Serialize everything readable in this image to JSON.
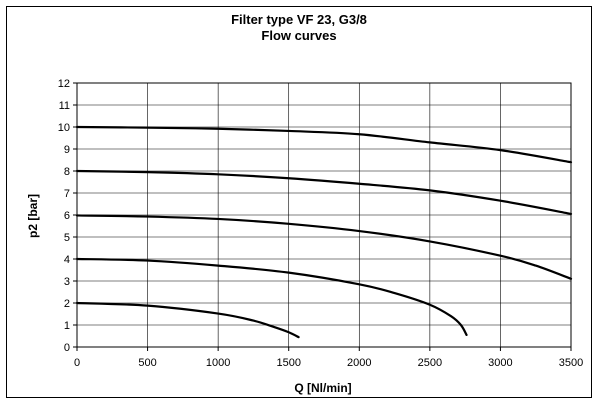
{
  "chart_data": {
    "type": "line",
    "title": "Filter type VF 23, G3/8",
    "subtitle": "Flow curves",
    "xlabel": "Q [Nl/min]",
    "ylabel": "p2 [bar]",
    "xlim": [
      0,
      3500
    ],
    "ylim": [
      0,
      12
    ],
    "x_ticks": [
      "0",
      "500",
      "1000",
      "1500",
      "2000",
      "2500",
      "3000",
      "3500"
    ],
    "y_ticks": [
      "0",
      "1",
      "2",
      "3",
      "4",
      "5",
      "6",
      "7",
      "8",
      "9",
      "10",
      "11",
      "12"
    ],
    "grid": true,
    "legend": "none",
    "series": [
      {
        "values": [
          [
            0,
            10
          ],
          [
            500,
            9.97
          ],
          [
            1000,
            9.92
          ],
          [
            1500,
            9.82
          ],
          [
            2000,
            9.67
          ],
          [
            2500,
            9.3
          ],
          [
            3000,
            8.95
          ],
          [
            3500,
            8.4
          ]
        ]
      },
      {
        "values": [
          [
            0,
            8
          ],
          [
            500,
            7.95
          ],
          [
            1000,
            7.85
          ],
          [
            1500,
            7.67
          ],
          [
            2000,
            7.42
          ],
          [
            2500,
            7.12
          ],
          [
            3000,
            6.65
          ],
          [
            3500,
            6.05
          ]
        ]
      },
      {
        "values": [
          [
            0,
            5.98
          ],
          [
            500,
            5.93
          ],
          [
            1000,
            5.82
          ],
          [
            1500,
            5.6
          ],
          [
            2000,
            5.27
          ],
          [
            2500,
            4.8
          ],
          [
            3000,
            4.15
          ],
          [
            3250,
            3.7
          ],
          [
            3500,
            3.1
          ]
        ]
      },
      {
        "values": [
          [
            0,
            4
          ],
          [
            500,
            3.93
          ],
          [
            1000,
            3.7
          ],
          [
            1500,
            3.38
          ],
          [
            2000,
            2.85
          ],
          [
            2250,
            2.45
          ],
          [
            2500,
            1.92
          ],
          [
            2650,
            1.4
          ],
          [
            2720,
            1.0
          ],
          [
            2760,
            0.55
          ]
        ]
      },
      {
        "values": [
          [
            0,
            2
          ],
          [
            500,
            1.88
          ],
          [
            1000,
            1.52
          ],
          [
            1250,
            1.2
          ],
          [
            1400,
            0.9
          ],
          [
            1500,
            0.67
          ],
          [
            1570,
            0.45
          ]
        ]
      }
    ]
  }
}
